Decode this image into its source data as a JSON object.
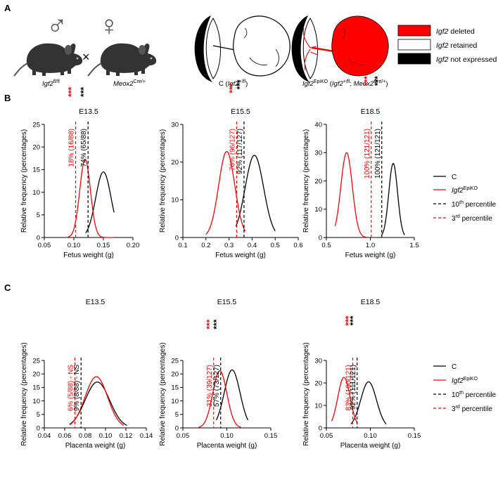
{
  "panel_labels": [
    "A",
    "B",
    "C"
  ],
  "panel_a": {
    "male_symbol": "♂",
    "female_symbol": "♀",
    "cross": "×",
    "male_genotype": {
      "gene": "Igf2",
      "sup": "fl/fl"
    },
    "female_genotype": {
      "gene": "Meox2",
      "sup": "Cre/+"
    },
    "control_label": {
      "prefix": "C (",
      "gene": "Igf2",
      "sup": "+/fl",
      "suffix": ")"
    },
    "ko_label": {
      "gene": "Igf2",
      "sup": "EpiKO",
      "mid": " (",
      "gene2": "Igf2",
      "sup2": "+/fl",
      "sep": "; ",
      "gene3": "Meox2",
      "sup3": "Cre/+",
      "suffix": ")"
    },
    "legend": [
      {
        "label": "Igf2 deleted",
        "gene": "Igf2",
        "rest": " deleted",
        "color": "#ff0000"
      },
      {
        "label": "Igf2 retained",
        "gene": "Igf2",
        "rest": " retained",
        "color": "#ffffff"
      },
      {
        "label": "Igf2 not expressed",
        "gene": "Igf2",
        "rest": " not expressed",
        "color": "#000000"
      }
    ]
  },
  "series_legend": {
    "control": "C",
    "ko_gene": "Igf2",
    "ko_sup": "EpiKO",
    "p10": "10",
    "p10_sup": "th",
    "p10_rest": " percentile",
    "p3": "3",
    "p3_sup": "rd",
    "p3_rest": " percentile"
  },
  "colors": {
    "control": "#000000",
    "ko": "#ff0000"
  },
  "chart_data": [
    {
      "id": "B1",
      "type": "line",
      "title": "E13.5",
      "xlabel": "Fetus weight (g)",
      "ylabel": "Relative frequency (percentages)",
      "xlim": [
        0.05,
        0.2
      ],
      "xticks": [
        0.05,
        0.1,
        0.15,
        0.2
      ],
      "xtick_labels": [
        "0.05",
        "0.10",
        "0.15",
        "0.20"
      ],
      "ylim": [
        0,
        25
      ],
      "yticks": [
        0,
        5,
        10,
        15,
        20,
        25
      ],
      "series": [
        {
          "name": "C",
          "mean": 0.15,
          "sd": 0.013,
          "peak": 14.5,
          "xmin": 0.12,
          "xmax": 0.168
        },
        {
          "name": "Igf2EpiKO",
          "mean": 0.119,
          "sd": 0.009,
          "peak": 17.3,
          "xmin": 0.09,
          "xmax": 0.168
        }
      ],
      "p10": 0.124,
      "p3": 0.103,
      "annot_ko": "18% (16/88)",
      "annot_c": "74% (65/88)",
      "stars_ko": "***",
      "stars_c": "***"
    },
    {
      "id": "B2",
      "type": "line",
      "title": "E15.5",
      "xlabel": "Fetus weight (g)",
      "ylabel": "Relative frequency (percentages)",
      "xlim": [
        0.1,
        0.6
      ],
      "xticks": [
        0.1,
        0.2,
        0.3,
        0.4,
        0.5,
        0.6
      ],
      "xtick_labels": [
        "0.1",
        "0.2",
        "0.3",
        "0.4",
        "0.5",
        "0.6"
      ],
      "ylim": [
        0,
        30
      ],
      "yticks": [
        0,
        10,
        20,
        30
      ],
      "series": [
        {
          "name": "C",
          "mean": 0.41,
          "sd": 0.04,
          "peak": 21.8,
          "xmin": 0.33,
          "xmax": 0.5
        },
        {
          "name": "Igf2EpiKO",
          "mean": 0.29,
          "sd": 0.035,
          "peak": 22.8,
          "xmin": 0.2,
          "xmax": 0.37
        }
      ],
      "p10": 0.365,
      "p3": 0.333,
      "annot_ko": "76% (96/127)",
      "annot_c": "92% (117/127)",
      "stars_ko": "***",
      "stars_c": "***"
    },
    {
      "id": "B3",
      "type": "line",
      "title": "E18.5",
      "xlabel": "Fetus weight (g)",
      "ylabel": "Relative frequency (percentages)",
      "xlim": [
        0.5,
        1.5
      ],
      "xticks": [
        0.5,
        1.0,
        1.5
      ],
      "xtick_labels": [
        "0.5",
        "1.0",
        "1.5"
      ],
      "ylim": [
        0,
        40
      ],
      "yticks": [
        0,
        10,
        20,
        30,
        40
      ],
      "series": [
        {
          "name": "C",
          "mean": 1.26,
          "sd": 0.05,
          "peak": 26.2,
          "xmin": 1.13,
          "xmax": 1.39
        },
        {
          "name": "Igf2EpiKO",
          "mean": 0.73,
          "sd": 0.065,
          "peak": 30.0,
          "xmin": 0.6,
          "xmax": 0.97
        }
      ],
      "p10": 1.13,
      "p3": 1.01,
      "annot_ko": "100% (121/121)",
      "annot_c": "100% (121/121)",
      "stars_ko": "***",
      "stars_c": "***"
    },
    {
      "id": "C1",
      "type": "line",
      "title": "E13.5",
      "xlabel": "Placenta weight (g)",
      "ylabel": "Relative frequency (percentages)",
      "xlim": [
        0.04,
        0.14
      ],
      "xticks": [
        0.04,
        0.06,
        0.08,
        0.1,
        0.12,
        0.14
      ],
      "xtick_labels": [
        "0.04",
        "0.06",
        "0.08",
        "0.10",
        "0.12",
        "0.14"
      ],
      "ylim": [
        0,
        25
      ],
      "yticks": [
        0,
        5,
        10,
        15,
        20,
        25
      ],
      "series": [
        {
          "name": "C",
          "mean": 0.092,
          "sd": 0.012,
          "peak": 17.0,
          "xmin": 0.065,
          "xmax": 0.121
        },
        {
          "name": "Igf2EpiKO",
          "mean": 0.091,
          "sd": 0.011,
          "peak": 19.0,
          "xmin": 0.065,
          "xmax": 0.118
        }
      ],
      "p10": 0.076,
      "p3": 0.07,
      "annot_ko": "6% (5/88) - NS",
      "annot_c": "9% (8/88) - NS",
      "stars_ko": "",
      "stars_c": ""
    },
    {
      "id": "C2",
      "type": "line",
      "title": "E15.5",
      "xlabel": "Placenta weight (g)",
      "ylabel": "Relative frequency (percentages)",
      "xlim": [
        0.05,
        0.15
      ],
      "xticks": [
        0.05,
        0.1,
        0.15
      ],
      "xtick_labels": [
        "0.05",
        "0.10",
        "0.15"
      ],
      "ylim": [
        0,
        25
      ],
      "yticks": [
        0,
        5,
        10,
        15,
        20,
        25
      ],
      "series": [
        {
          "name": "C",
          "mean": 0.106,
          "sd": 0.009,
          "peak": 21.5,
          "xmin": 0.088,
          "xmax": 0.124
        },
        {
          "name": "Igf2EpiKO",
          "mean": 0.092,
          "sd": 0.008,
          "peak": 21.2,
          "xmin": 0.068,
          "xmax": 0.116
        }
      ],
      "p10": 0.093,
      "p3": 0.085,
      "annot_ko": "31% (39/127)",
      "annot_c": "57% (73/127)",
      "stars_ko": "***",
      "stars_c": "***"
    },
    {
      "id": "C3",
      "type": "line",
      "title": "E18.5",
      "xlabel": "Placenta weight (g)",
      "ylabel": "Relative frequency (percentages)",
      "xlim": [
        0.05,
        0.15
      ],
      "xticks": [
        0.05,
        0.1,
        0.15
      ],
      "xtick_labels": [
        "0.05",
        "0.10",
        "0.15"
      ],
      "ylim": [
        0,
        30
      ],
      "yticks": [
        0,
        10,
        20,
        30
      ],
      "series": [
        {
          "name": "C",
          "mean": 0.098,
          "sd": 0.009,
          "peak": 20.5,
          "xmin": 0.078,
          "xmax": 0.118
        },
        {
          "name": "Igf2EpiKO",
          "mean": 0.07,
          "sd": 0.007,
          "peak": 22.5,
          "xmin": 0.056,
          "xmax": 0.085
        }
      ],
      "p10": 0.085,
      "p3": 0.08,
      "annot_ko": "83% (100/121)",
      "annot_c": "92% (111/121)",
      "stars_ko": "***",
      "stars_c": "***"
    }
  ]
}
